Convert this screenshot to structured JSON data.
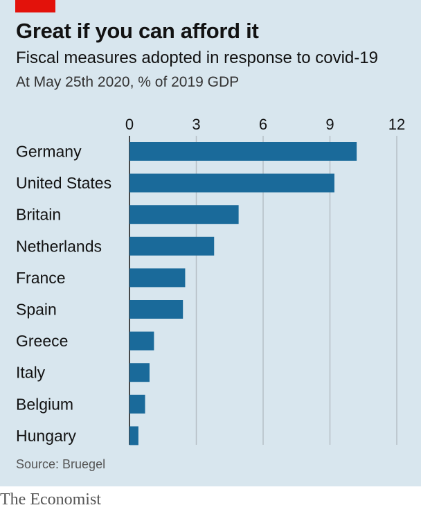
{
  "title": "Great if you can afford it",
  "subtitle": "Fiscal measures adopted in response to covid-19",
  "note": "At May 25th 2020, % of 2019 GDP",
  "source": "Source: Bruegel",
  "brand": "The Economist",
  "colors": {
    "background": "#d8e6ee",
    "bar": "#1a6a9a",
    "accent": "#e3120b",
    "grid": "#b5bfc5",
    "axis": "#121212"
  },
  "chart_data": {
    "type": "bar",
    "orientation": "horizontal",
    "categories": [
      "Germany",
      "United States",
      "Britain",
      "Netherlands",
      "France",
      "Spain",
      "Greece",
      "Italy",
      "Belgium",
      "Hungary"
    ],
    "values": [
      10.2,
      9.2,
      4.9,
      3.8,
      2.5,
      2.4,
      1.1,
      0.9,
      0.7,
      0.4
    ],
    "xlim": [
      0,
      12
    ],
    "ticks": [
      "0",
      "3",
      "6",
      "9",
      "12"
    ],
    "grid": true,
    "tick_position": "top"
  }
}
